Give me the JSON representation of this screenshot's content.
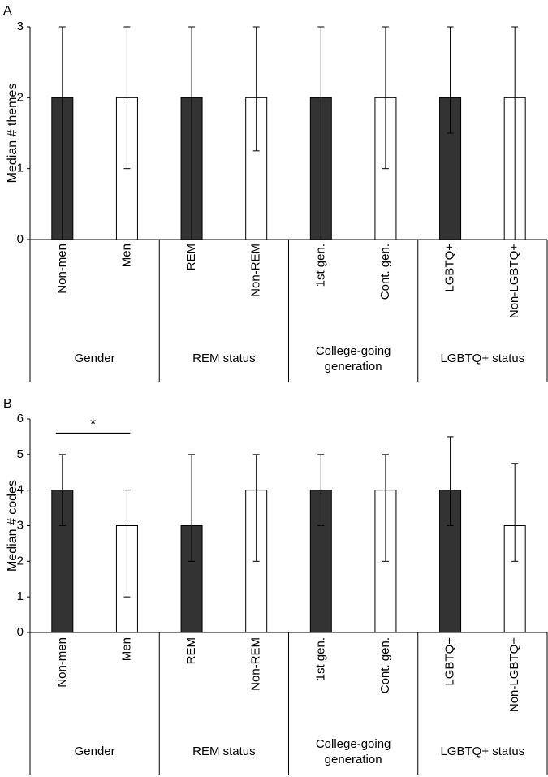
{
  "chart_data": [
    {
      "panel": "A",
      "type": "bar",
      "ylabel": "Median # themes",
      "ylim": [
        0,
        3
      ],
      "yticks": [
        "0",
        "1",
        "2",
        "3"
      ],
      "grid": false,
      "categories": [
        "Non-men",
        "Men",
        "REM",
        "Non-REM",
        "1st gen.",
        "Cont. gen.",
        "LGBTQ+",
        "Non-LGBTQ+"
      ],
      "values": [
        2,
        2,
        2,
        2,
        2,
        2,
        2,
        2
      ],
      "error_low": [
        0,
        1,
        0,
        1.25,
        0,
        1,
        1.5,
        0
      ],
      "error_high": [
        3,
        3,
        3,
        3,
        3,
        3,
        3,
        3
      ],
      "fills": [
        "#333333",
        "#ffffff",
        "#333333",
        "#ffffff",
        "#333333",
        "#ffffff",
        "#333333",
        "#ffffff"
      ],
      "groups": [
        {
          "label_lines": [
            "Gender"
          ]
        },
        {
          "label_lines": [
            "REM status"
          ]
        },
        {
          "label_lines": [
            "College-going",
            "generation"
          ]
        },
        {
          "label_lines": [
            "LGBTQ+ status"
          ]
        }
      ],
      "significance": []
    },
    {
      "panel": "B",
      "type": "bar",
      "ylabel": "Median # codes",
      "ylim": [
        0,
        6
      ],
      "yticks": [
        "0",
        "1",
        "2",
        "3",
        "4",
        "5",
        "6"
      ],
      "grid": false,
      "categories": [
        "Non-men",
        "Men",
        "REM",
        "Non-REM",
        "1st gen.",
        "Cont. gen.",
        "LGBTQ+",
        "Non-LGBTQ+"
      ],
      "values": [
        4,
        3,
        3,
        4,
        4,
        4,
        4,
        3
      ],
      "error_low": [
        3,
        1,
        2,
        2,
        3,
        2,
        3,
        2
      ],
      "error_high": [
        5,
        4,
        5,
        5,
        5,
        5,
        5.5,
        4.75
      ],
      "fills": [
        "#333333",
        "#ffffff",
        "#333333",
        "#ffffff",
        "#333333",
        "#ffffff",
        "#333333",
        "#ffffff"
      ],
      "groups": [
        {
          "label_lines": [
            "Gender"
          ]
        },
        {
          "label_lines": [
            "REM status"
          ]
        },
        {
          "label_lines": [
            "College-going",
            "generation"
          ]
        },
        {
          "label_lines": [
            "LGBTQ+ status"
          ]
        }
      ],
      "significance": [
        {
          "from": 0,
          "to": 1,
          "label": "*",
          "level": 5.6
        }
      ]
    }
  ]
}
